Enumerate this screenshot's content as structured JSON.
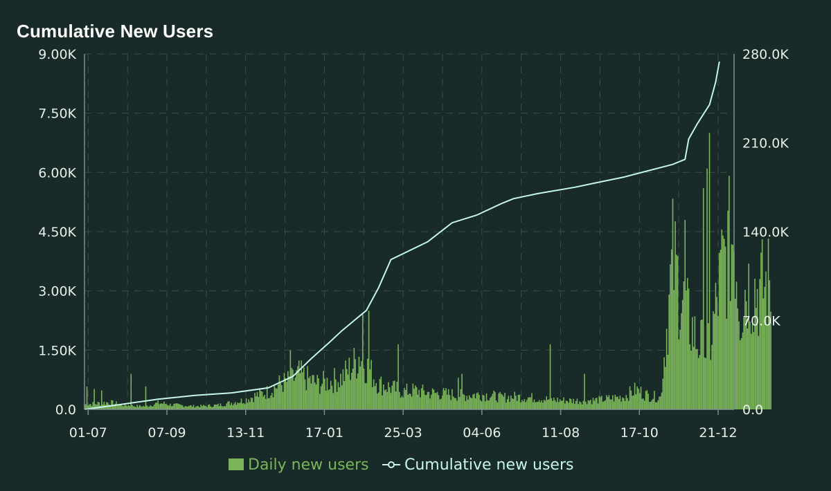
{
  "chart_data": {
    "type": "bar+line",
    "title": "Cumulative New Users",
    "x_tick_labels": [
      "01-07",
      "07-09",
      "13-11",
      "17-01",
      "25-03",
      "04-06",
      "11-08",
      "17-10",
      "21-12"
    ],
    "y_left": {
      "ylim": [
        0,
        9000
      ],
      "tick_labels": [
        "0.0",
        "1.50K",
        "3.00K",
        "4.50K",
        "6.00K",
        "7.50K",
        "9.00K"
      ]
    },
    "y_right": {
      "ylim": [
        0,
        280000
      ],
      "tick_labels": [
        "0.0",
        "70.0K",
        "140.0K",
        "210.0K",
        "280.0K"
      ]
    },
    "grid": true,
    "legend_position": "bottom",
    "colors": {
      "bars": "#7bb55a",
      "line": "#c6f6ec",
      "axis": "#7f8f8b",
      "grid": "#3c4d4a",
      "background": "#182b28"
    },
    "series": [
      {
        "name": "Daily new users",
        "type": "bar",
        "axis": "left",
        "x_days": [
          0,
          10,
          20,
          30,
          40,
          50,
          60,
          65,
          70,
          80,
          90,
          100,
          110,
          120,
          130,
          140,
          150,
          160,
          170,
          175,
          180,
          190,
          200,
          210,
          220,
          225,
          230,
          240,
          250,
          260,
          270,
          280,
          290,
          300,
          310,
          320,
          330,
          340,
          350,
          360,
          370,
          380,
          390,
          400,
          410,
          420,
          430,
          440,
          450,
          460,
          470,
          480,
          490,
          500,
          510,
          520,
          530,
          535,
          540,
          550,
          560
        ],
        "values": [
          120,
          150,
          180,
          120,
          90,
          80,
          160,
          150,
          120,
          100,
          80,
          90,
          110,
          170,
          230,
          350,
          450,
          650,
          750,
          900,
          800,
          650,
          700,
          800,
          1150,
          1400,
          1100,
          650,
          550,
          450,
          480,
          420,
          400,
          380,
          350,
          380,
          360,
          300,
          320,
          310,
          280,
          250,
          230,
          220,
          230,
          240,
          280,
          320,
          500,
          350,
          300,
          3800,
          2500,
          1700,
          1500,
          3500,
          4500,
          2500,
          3200,
          3000,
          3200
        ],
        "spikes": [
          [
            2,
            580
          ],
          [
            8,
            520
          ],
          [
            14,
            480
          ],
          [
            38,
            900
          ],
          [
            50,
            580
          ],
          [
            168,
            1500
          ],
          [
            227,
            2450
          ],
          [
            232,
            2500
          ],
          [
            256,
            1650
          ],
          [
            305,
            800
          ],
          [
            308,
            900
          ],
          [
            380,
            1650
          ],
          [
            408,
            900
          ],
          [
            490,
            4800
          ],
          [
            505,
            5600
          ],
          [
            508,
            6100
          ],
          [
            510,
            7000
          ]
        ]
      },
      {
        "name": "Cumulative new users",
        "type": "line",
        "axis": "right",
        "x_days": [
          0,
          30,
          60,
          90,
          120,
          150,
          170,
          185,
          200,
          210,
          220,
          230,
          240,
          250,
          280,
          300,
          320,
          340,
          350,
          370,
          400,
          420,
          440,
          460,
          480,
          490,
          493,
          500,
          510,
          515,
          518
        ],
        "values": [
          0,
          4000,
          8000,
          11000,
          13000,
          17000,
          26000,
          40000,
          53000,
          62000,
          70000,
          78000,
          96000,
          118000,
          132000,
          147000,
          153000,
          162000,
          166000,
          170000,
          175000,
          179000,
          183000,
          188000,
          193000,
          197000,
          213000,
          225000,
          240000,
          258000,
          274000
        ]
      }
    ]
  }
}
